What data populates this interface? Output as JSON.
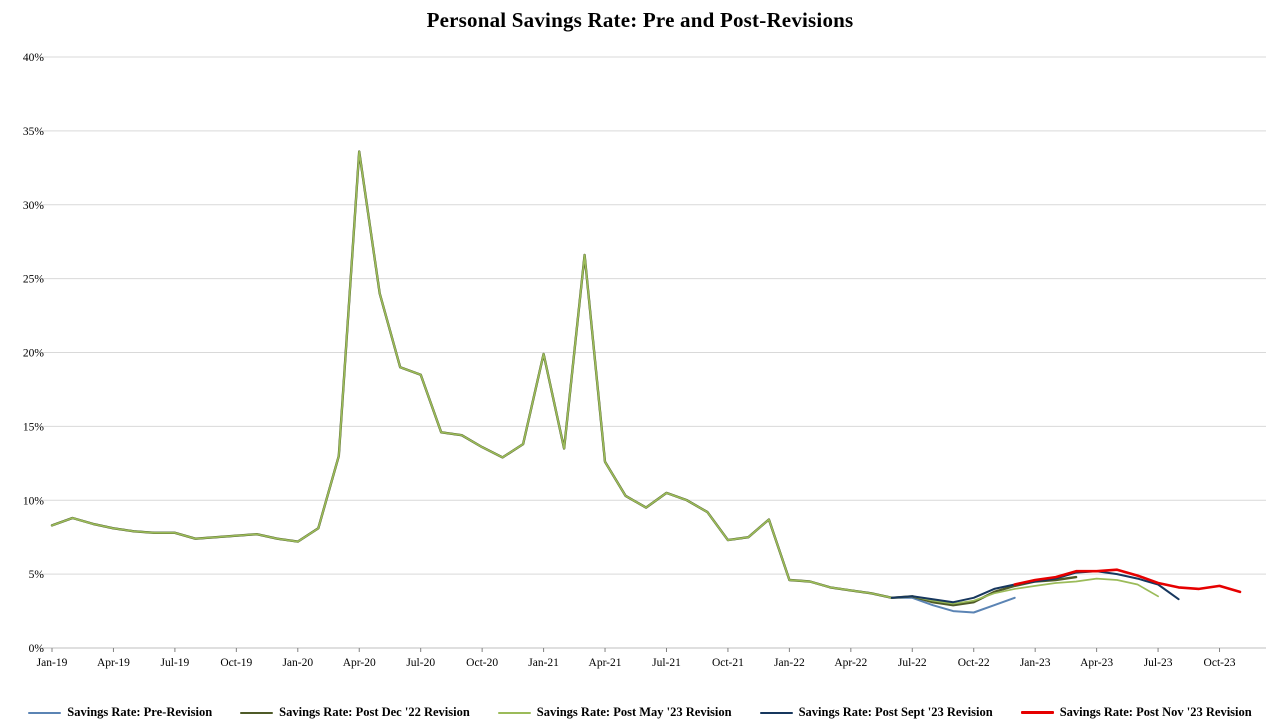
{
  "title": "Personal Savings Rate: Pre and Post-Revisions",
  "chart_data": {
    "type": "line",
    "title": "Personal Savings Rate: Pre and Post-Revisions",
    "xlabel": "",
    "ylabel": "",
    "ylim": [
      0,
      40
    ],
    "grid": "horizontal",
    "legend_position": "bottom",
    "x_unit": "month",
    "x_start": "Jan-19",
    "x_count": 59,
    "x_tick_step": 3,
    "x_tick_labels": [
      "Jan-19",
      "Apr-19",
      "Jul-19",
      "Oct-19",
      "Jan-20",
      "Apr-20",
      "Jul-20",
      "Oct-20",
      "Jan-21",
      "Apr-21",
      "Jul-21",
      "Oct-21",
      "Jan-22",
      "Apr-22",
      "Jul-22",
      "Oct-22",
      "Jan-23",
      "Apr-23",
      "Jul-23",
      "Oct-23"
    ],
    "y_tick_labels": [
      "0%",
      "5%",
      "10%",
      "15%",
      "20%",
      "25%",
      "30%",
      "35%",
      "40%"
    ],
    "series": [
      {
        "id": "pre-revision",
        "name": "Savings Rate: Pre-Revision",
        "color": "#5b84b4",
        "width": 2,
        "start": 0,
        "values": [
          8.3,
          8.8,
          8.4,
          8.1,
          7.9,
          7.8,
          7.8,
          7.4,
          7.5,
          7.6,
          7.7,
          7.4,
          7.2,
          8.1,
          13.0,
          33.6,
          24.0,
          19.0,
          18.5,
          14.6,
          14.4,
          13.6,
          12.9,
          13.8,
          19.9,
          13.5,
          26.6,
          12.6,
          10.3,
          9.5,
          10.5,
          10.0,
          9.2,
          7.3,
          7.5,
          8.7,
          4.6,
          4.5,
          4.1,
          3.9,
          3.7,
          3.4,
          3.4,
          2.9,
          2.5,
          2.4,
          2.9,
          3.4
        ]
      },
      {
        "id": "post-dec-22",
        "name": "Savings Rate: Post Dec '22 Revision",
        "color": "#4f5b28",
        "width": 2.4,
        "start": 0,
        "values": [
          8.3,
          8.8,
          8.4,
          8.1,
          7.9,
          7.8,
          7.8,
          7.4,
          7.5,
          7.6,
          7.7,
          7.4,
          7.2,
          8.1,
          13.0,
          33.6,
          24.0,
          19.0,
          18.5,
          14.6,
          14.4,
          13.6,
          12.9,
          13.8,
          19.9,
          13.5,
          26.6,
          12.6,
          10.3,
          9.5,
          10.5,
          10.0,
          9.2,
          7.3,
          7.5,
          8.7,
          4.6,
          4.5,
          4.1,
          3.9,
          3.7,
          3.4,
          3.5,
          3.1,
          2.9,
          3.1,
          3.8,
          4.2,
          4.5,
          4.6,
          4.8
        ]
      },
      {
        "id": "post-may-23",
        "name": "Savings Rate: Post May '23 Revision",
        "color": "#9bbb59",
        "width": 1.7,
        "start": 0,
        "values": [
          8.3,
          8.8,
          8.4,
          8.1,
          7.9,
          7.8,
          7.8,
          7.4,
          7.5,
          7.6,
          7.7,
          7.4,
          7.2,
          8.1,
          13.0,
          33.6,
          24.0,
          19.0,
          18.5,
          14.6,
          14.4,
          13.6,
          12.9,
          13.8,
          19.9,
          13.5,
          26.6,
          12.6,
          10.3,
          9.5,
          10.5,
          10.0,
          9.2,
          7.3,
          7.5,
          8.7,
          4.6,
          4.5,
          4.1,
          3.9,
          3.7,
          3.4,
          3.5,
          3.2,
          3.0,
          3.2,
          3.7,
          4.0,
          4.2,
          4.4,
          4.5,
          4.7,
          4.6,
          4.3,
          3.5
        ]
      },
      {
        "id": "post-sept-23",
        "name": "Savings Rate: Post Sept '23 Revision",
        "color": "#17375e",
        "width": 2,
        "start": 41,
        "values": [
          3.4,
          3.5,
          3.3,
          3.1,
          3.4,
          4.0,
          4.3,
          4.5,
          4.7,
          5.1,
          5.2,
          5.0,
          4.7,
          4.3,
          3.3
        ]
      },
      {
        "id": "post-nov-23",
        "name": "Savings Rate: Post Nov '23 Revision",
        "color": "#e60000",
        "width": 2.6,
        "start": 47,
        "values": [
          4.3,
          4.6,
          4.8,
          5.2,
          5.2,
          5.3,
          4.9,
          4.4,
          4.1,
          4.0,
          4.2,
          3.8
        ]
      }
    ]
  }
}
